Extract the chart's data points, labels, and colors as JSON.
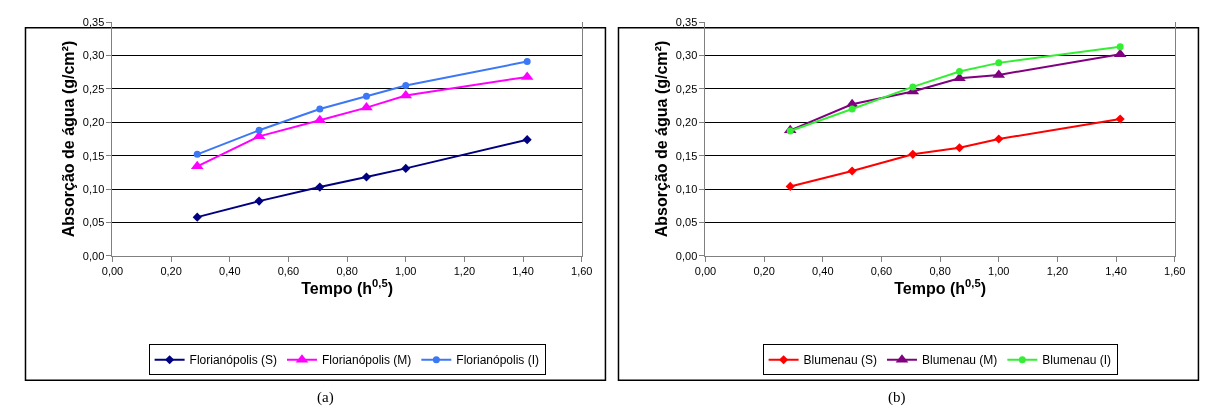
{
  "chart_data": [
    {
      "type": "line",
      "xlabel": "Tempo (h$^{0,5}$)",
      "ylabel": "Absorção de água (g/cm²)",
      "annotations": [
        "(a)"
      ],
      "grid": "y",
      "legend": "bottom",
      "line_style": "solid",
      "x": [
        0.289,
        0.5,
        0.707,
        0.866,
        1.0,
        1.414
      ],
      "xlim": [
        0,
        1.6
      ],
      "xticks": [
        {
          "value": 0,
          "label": "0,00"
        },
        {
          "value": 0.2,
          "label": "0,20"
        },
        {
          "value": 0.4,
          "label": "0,40"
        },
        {
          "value": 0.6,
          "label": "0,60"
        },
        {
          "value": 0.8,
          "label": "0,80"
        },
        {
          "value": 1.0,
          "label": "1,00"
        },
        {
          "value": 1.2,
          "label": "1,20"
        },
        {
          "value": 1.4,
          "label": "1,40"
        },
        {
          "value": 1.6,
          "label": "1,60"
        }
      ],
      "ylim": [
        0,
        0.35
      ],
      "yticks": [
        {
          "value": 0,
          "label": "0,00"
        },
        {
          "value": 0.05,
          "label": "0,05"
        },
        {
          "value": 0.1,
          "label": "0,10"
        },
        {
          "value": 0.15,
          "label": "0,15"
        },
        {
          "value": 0.2,
          "label": "0,20"
        },
        {
          "value": 0.25,
          "label": "0,25"
        },
        {
          "value": 0.3,
          "label": "0,30"
        },
        {
          "value": 0.35,
          "label": "0,35"
        }
      ],
      "series": [
        {
          "name": "Florianópolis (S)",
          "color": "#000080",
          "marker": "diamond",
          "values": [
            0.058,
            0.082,
            0.103,
            0.118,
            0.131,
            0.174
          ]
        },
        {
          "name": "Florianópolis (M)",
          "color": "#ff00ff",
          "marker": "triangle",
          "values": [
            0.134,
            0.179,
            0.203,
            0.222,
            0.24,
            0.268
          ]
        },
        {
          "name": "Florianópolis (I)",
          "color": "#3c78f5",
          "marker": "circle",
          "values": [
            0.152,
            0.188,
            0.22,
            0.239,
            0.255,
            0.291
          ]
        }
      ]
    },
    {
      "type": "line",
      "xlabel": "Tempo (h$^{0,5}$)",
      "ylabel": "Absorção de água (g/cm²)",
      "annotations": [
        "(b)"
      ],
      "grid": "y",
      "legend": "bottom",
      "line_style": "solid",
      "x": [
        0.289,
        0.5,
        0.707,
        0.866,
        1.0,
        1.414
      ],
      "xlim": [
        0,
        1.6
      ],
      "xticks": [
        {
          "value": 0,
          "label": "0,00"
        },
        {
          "value": 0.2,
          "label": "0,20"
        },
        {
          "value": 0.4,
          "label": "0,40"
        },
        {
          "value": 0.6,
          "label": "0,60"
        },
        {
          "value": 0.8,
          "label": "0,80"
        },
        {
          "value": 1.0,
          "label": "1,00"
        },
        {
          "value": 1.2,
          "label": "1,20"
        },
        {
          "value": 1.4,
          "label": "1,40"
        },
        {
          "value": 1.6,
          "label": "1,60"
        }
      ],
      "ylim": [
        0,
        0.35
      ],
      "yticks": [
        {
          "value": 0,
          "label": "0,00"
        },
        {
          "value": 0.05,
          "label": "0,05"
        },
        {
          "value": 0.1,
          "label": "0,10"
        },
        {
          "value": 0.15,
          "label": "0,15"
        },
        {
          "value": 0.2,
          "label": "0,20"
        },
        {
          "value": 0.25,
          "label": "0,25"
        },
        {
          "value": 0.3,
          "label": "0,30"
        },
        {
          "value": 0.35,
          "label": "0,35"
        }
      ],
      "series": [
        {
          "name": "Blumenau (S)",
          "color": "#ff0000",
          "marker": "diamond",
          "values": [
            0.104,
            0.127,
            0.152,
            0.162,
            0.175,
            0.205
          ]
        },
        {
          "name": "Blumenau (M)",
          "color": "#800080",
          "marker": "triangle",
          "values": [
            0.188,
            0.227,
            0.246,
            0.266,
            0.271,
            0.302
          ]
        },
        {
          "name": "Blumenau (I)",
          "color": "#33ee33",
          "marker": "circle",
          "values": [
            0.187,
            0.22,
            0.253,
            0.276,
            0.289,
            0.313
          ]
        }
      ]
    }
  ]
}
